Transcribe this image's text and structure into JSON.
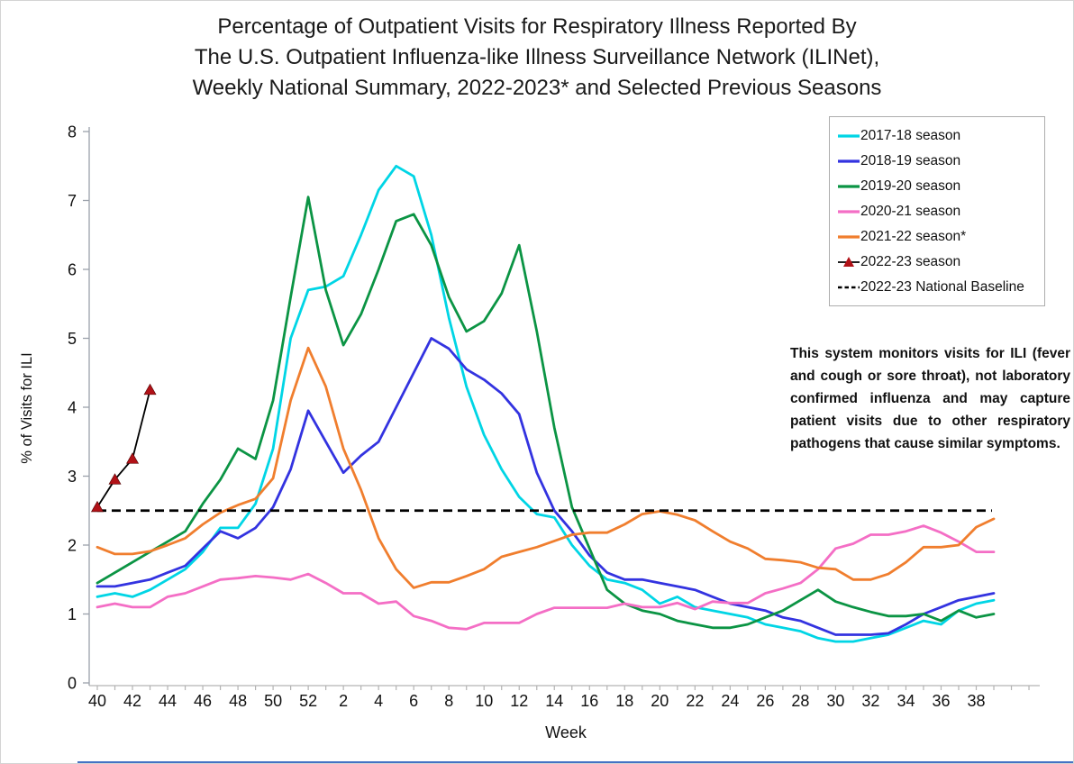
{
  "title": {
    "line1": "Percentage of Outpatient Visits for Respiratory Illness Reported By",
    "line2": "The U.S. Outpatient Influenza-like Illness Surveillance Network (ILINet),",
    "line3": "Weekly National Summary, 2022-2023* and Selected Previous Seasons"
  },
  "annotation": {
    "text": "This system monitors visits for ILI (fever and cough or sore throat), not laboratory confirmed influenza and may capture patient visits due to other respiratory pathogens that cause similar symptoms."
  },
  "chart_data": {
    "type": "line",
    "xlabel": "Week",
    "ylabel": "% of Visits for ILI",
    "ylim": [
      0,
      8
    ],
    "yticks": [
      0,
      1,
      2,
      3,
      4,
      5,
      6,
      7,
      8
    ],
    "grid": false,
    "legend_position": "top-right",
    "weeks": [
      "40",
      "41",
      "42",
      "43",
      "44",
      "45",
      "46",
      "47",
      "48",
      "49",
      "50",
      "51",
      "52",
      "1",
      "2",
      "3",
      "4",
      "5",
      "6",
      "7",
      "8",
      "9",
      "10",
      "11",
      "12",
      "13",
      "14",
      "15",
      "16",
      "17",
      "18",
      "19",
      "20",
      "21",
      "22",
      "23",
      "24",
      "25",
      "26",
      "27",
      "28",
      "29",
      "30",
      "31",
      "32",
      "33",
      "34",
      "35",
      "36",
      "37",
      "38",
      "39"
    ],
    "xtick_label_every": 2,
    "baseline": {
      "label": "2022-23 National Baseline",
      "value": 2.5,
      "style": "dashed",
      "color": "#000000"
    },
    "series": [
      {
        "name": "2017-18 season",
        "color": "#00D5E5",
        "values": [
          1.25,
          1.3,
          1.25,
          1.35,
          1.5,
          1.65,
          1.9,
          2.25,
          2.25,
          2.6,
          3.4,
          5.0,
          5.7,
          5.75,
          5.9,
          6.5,
          7.15,
          7.5,
          7.35,
          6.5,
          5.3,
          4.3,
          3.6,
          3.1,
          2.7,
          2.45,
          2.4,
          2.0,
          1.7,
          1.5,
          1.45,
          1.35,
          1.15,
          1.25,
          1.1,
          1.05,
          1.0,
          0.95,
          0.85,
          0.8,
          0.75,
          0.65,
          0.6,
          0.6,
          0.65,
          0.7,
          0.8,
          0.9,
          0.85,
          1.05,
          1.15,
          1.2
        ]
      },
      {
        "name": "2018-19 season",
        "color": "#3333E0",
        "values": [
          1.4,
          1.4,
          1.45,
          1.5,
          1.6,
          1.7,
          1.95,
          2.2,
          2.1,
          2.25,
          2.55,
          3.1,
          3.95,
          3.5,
          3.05,
          3.3,
          3.5,
          4.0,
          4.5,
          5.0,
          4.85,
          4.55,
          4.4,
          4.2,
          3.9,
          3.05,
          2.5,
          2.2,
          1.85,
          1.6,
          1.5,
          1.5,
          1.45,
          1.4,
          1.35,
          1.25,
          1.15,
          1.1,
          1.05,
          0.95,
          0.9,
          0.8,
          0.7,
          0.7,
          0.7,
          0.72,
          0.85,
          1.0,
          1.1,
          1.2,
          1.25,
          1.3
        ]
      },
      {
        "name": "2019-20 season",
        "color": "#0B9444",
        "values": [
          1.45,
          1.6,
          1.75,
          1.9,
          2.05,
          2.2,
          2.6,
          2.95,
          3.4,
          3.25,
          4.1,
          5.6,
          7.05,
          5.7,
          4.9,
          5.35,
          6.0,
          6.7,
          6.8,
          6.35,
          5.6,
          5.1,
          5.25,
          5.65,
          6.35,
          5.1,
          3.7,
          2.55,
          1.95,
          1.35,
          1.15,
          1.05,
          1.0,
          0.9,
          0.85,
          0.8,
          0.8,
          0.85,
          0.95,
          1.05,
          1.2,
          1.35,
          1.18,
          1.1,
          1.03,
          0.97,
          0.97,
          1.0,
          0.9,
          1.05,
          0.95,
          1.0
        ]
      },
      {
        "name": "2020-21 season",
        "color": "#F46EC5",
        "values": [
          1.1,
          1.15,
          1.1,
          1.1,
          1.25,
          1.3,
          1.4,
          1.5,
          1.52,
          1.55,
          1.53,
          1.5,
          1.58,
          1.45,
          1.3,
          1.3,
          1.15,
          1.18,
          0.97,
          0.9,
          0.8,
          0.78,
          0.87,
          0.87,
          0.87,
          1.0,
          1.09,
          1.09,
          1.09,
          1.09,
          1.15,
          1.1,
          1.1,
          1.16,
          1.07,
          1.18,
          1.16,
          1.16,
          1.3,
          1.37,
          1.45,
          1.65,
          1.95,
          2.02,
          2.15,
          2.15,
          2.2,
          2.28,
          2.18,
          2.05,
          1.9,
          1.9
        ]
      },
      {
        "name": "2021-22 season*",
        "color": "#F07E2E",
        "values": [
          1.97,
          1.87,
          1.87,
          1.91,
          2.0,
          2.1,
          2.3,
          2.47,
          2.58,
          2.67,
          2.97,
          4.1,
          4.86,
          4.3,
          3.4,
          2.8,
          2.1,
          1.65,
          1.38,
          1.46,
          1.46,
          1.55,
          1.65,
          1.83,
          1.9,
          1.97,
          2.06,
          2.15,
          2.18,
          2.18,
          2.3,
          2.45,
          2.49,
          2.44,
          2.36,
          2.2,
          2.05,
          1.95,
          1.8,
          1.78,
          1.75,
          1.67,
          1.65,
          1.5,
          1.5,
          1.58,
          1.75,
          1.97,
          1.97,
          2.0,
          2.26,
          2.38
        ]
      },
      {
        "name": "2022-23 season",
        "color": "#000000",
        "marker": "triangle",
        "marker_color": "#B11117",
        "values": [
          2.55,
          2.95,
          3.25,
          4.25
        ]
      }
    ]
  }
}
